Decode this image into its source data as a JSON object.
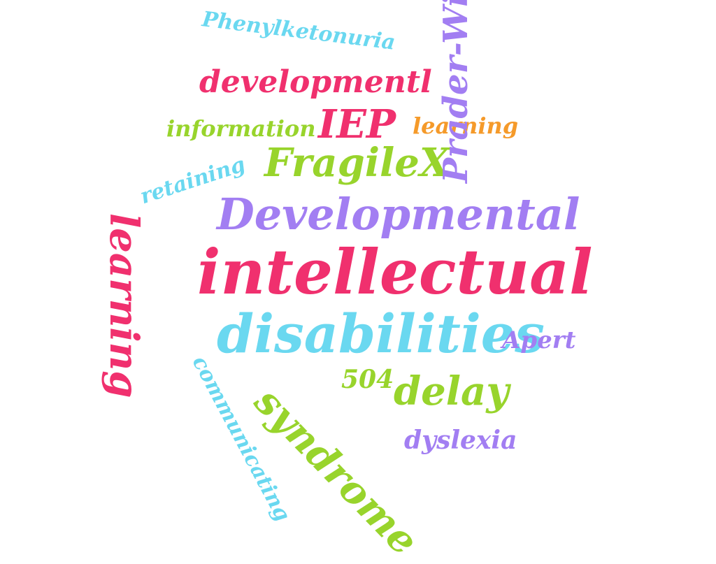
{
  "words": {
    "phenylketonuria": "Phenylketonuria",
    "developmentl": "developmentl",
    "information": "information",
    "iep": "IEP",
    "learning_top": "learning",
    "fragilex": "FragileX",
    "retaining": "retaining",
    "developmental": "Developmental",
    "prader_willi": "Prader-Willi",
    "learning_vertical": "learning",
    "intellectual": "intellectual",
    "disabilities": "disabilities",
    "apert": "Apert",
    "five_oh_four": "504",
    "delay": "delay",
    "syndrome": "syndrome",
    "dyslexia": "dyslexia",
    "communicating": "communicating"
  },
  "colors": {
    "pink": "#f0306e",
    "green": "#98d42c",
    "cyan": "#6ad8f0",
    "purple": "#a27ef2",
    "orange": "#f59a2a",
    "background": "#ffffff"
  }
}
